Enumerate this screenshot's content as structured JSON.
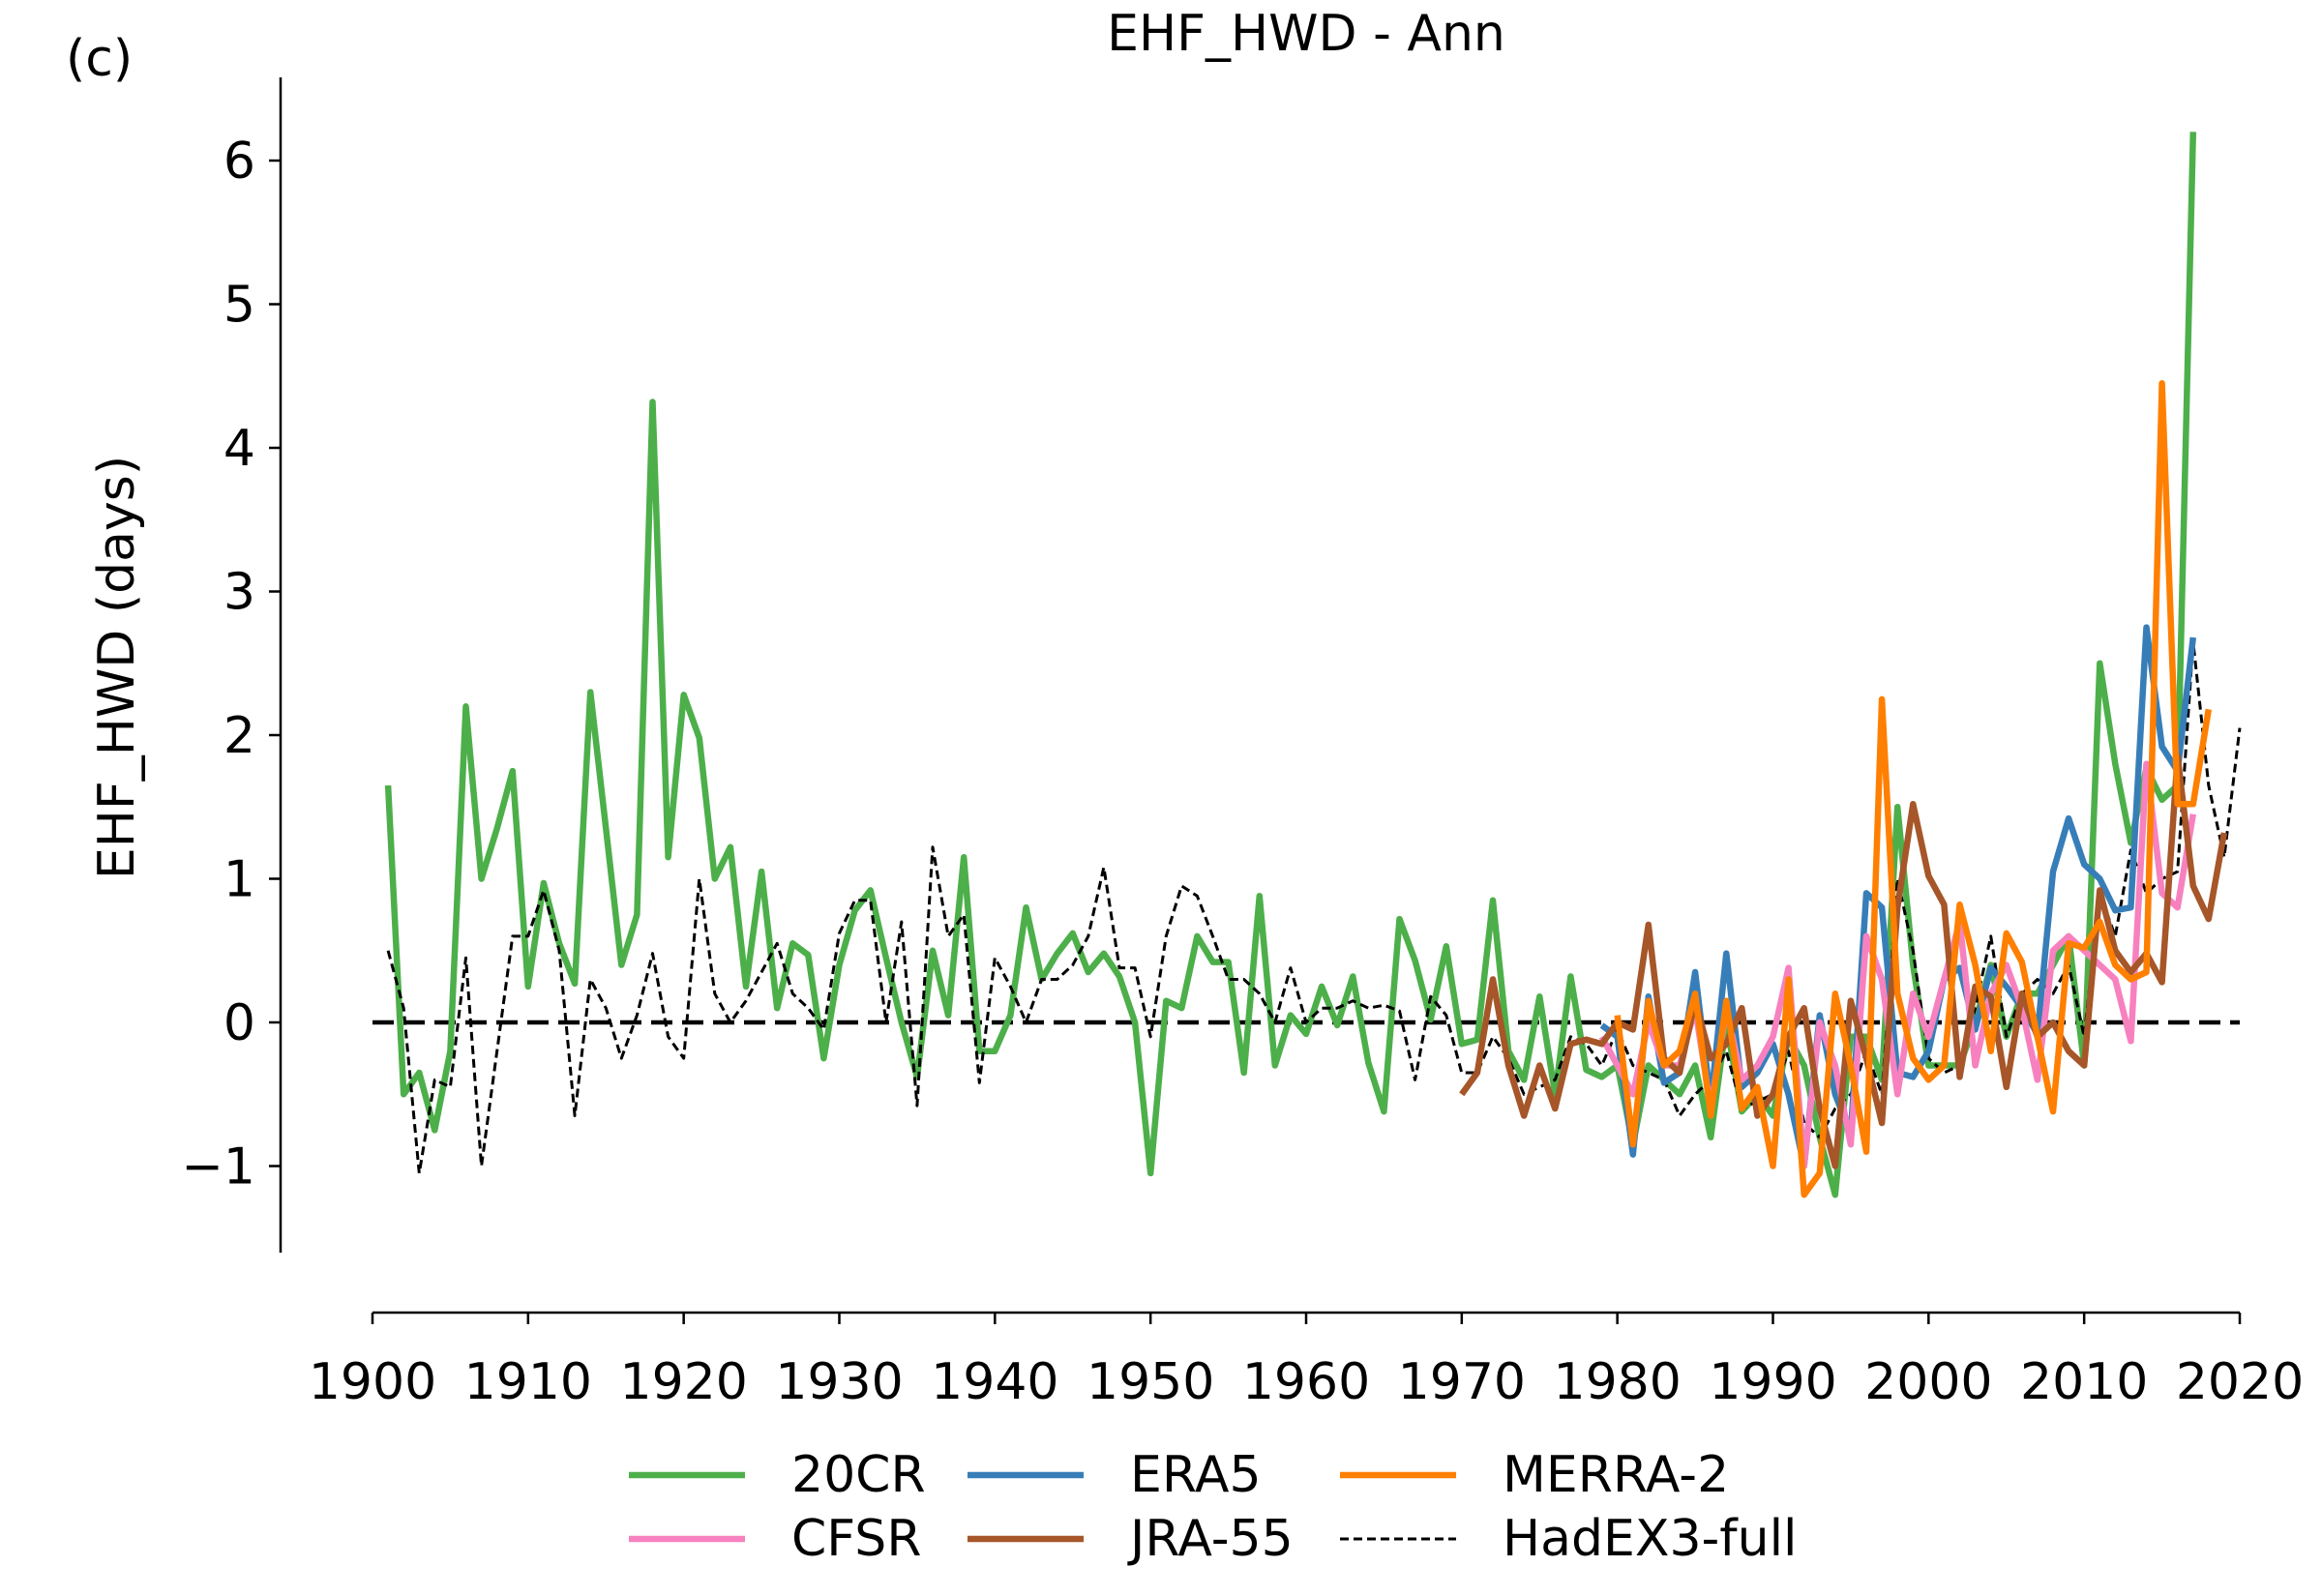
{
  "panel_label": "(c)",
  "chart_data": {
    "type": "line",
    "title": "EHF_HWD - Ann",
    "xlabel": "",
    "ylabel": "EHF_HWD (days)",
    "xlim": [
      1900,
      2020
    ],
    "ylim": [
      -1.6,
      6.5
    ],
    "xticks": [
      1900,
      1910,
      1920,
      1930,
      1940,
      1950,
      1960,
      1970,
      1980,
      1990,
      2000,
      2010,
      2020
    ],
    "yticks": [
      -1,
      0,
      1,
      2,
      3,
      4,
      5,
      6
    ],
    "ytick_labels": [
      "−1",
      "0",
      "1",
      "2",
      "3",
      "4",
      "5",
      "6"
    ],
    "grid": false,
    "legend_position": "bottom-center",
    "reference_line": {
      "y": 0,
      "style": "dashed",
      "color": "#000000"
    },
    "series": [
      {
        "name": "20CR",
        "color": "#4daf4a",
        "style": "solid",
        "x_start": 1901,
        "values": [
          1.65,
          -0.5,
          -0.35,
          -0.75,
          -0.2,
          2.2,
          1.0,
          1.35,
          1.75,
          0.25,
          0.97,
          0.55,
          0.27,
          2.3,
          1.35,
          0.4,
          0.75,
          4.32,
          1.15,
          2.28,
          1.98,
          1.0,
          1.22,
          0.25,
          1.05,
          0.1,
          0.55,
          0.47,
          -0.25,
          0.4,
          0.78,
          0.92,
          0.45,
          0.0,
          -0.38,
          0.5,
          0.05,
          1.15,
          -0.2,
          -0.2,
          0.05,
          0.8,
          0.3,
          0.48,
          0.62,
          0.35,
          0.48,
          0.32,
          0.0,
          -1.05,
          0.15,
          0.1,
          0.6,
          0.42,
          0.42,
          -0.35,
          0.88,
          -0.3,
          0.05,
          -0.08,
          0.25,
          -0.02,
          0.32,
          -0.28,
          -0.62,
          0.72,
          0.43,
          0.02,
          0.53,
          -0.15,
          -0.12,
          0.85,
          -0.2,
          -0.4,
          0.18,
          -0.5,
          0.32,
          -0.33,
          -0.38,
          -0.3,
          -0.85,
          -0.3,
          -0.4,
          -0.5,
          -0.3,
          -0.8,
          0.0,
          -0.62,
          -0.5,
          -0.65,
          -0.1,
          -0.3,
          -0.8,
          -1.2,
          -0.1,
          -0.1,
          -0.4,
          1.5,
          0.4,
          -0.3,
          -0.3,
          -0.3,
          0.0,
          0.4,
          -0.1,
          0.2,
          0.2,
          0.4,
          0.6,
          -0.3,
          2.5,
          1.8,
          1.25,
          1.77,
          1.55,
          1.65,
          6.2
        ]
      },
      {
        "name": "ERA5",
        "color": "#377eb8",
        "style": "solid",
        "x_start": 1979,
        "values": [
          -0.02,
          -0.1,
          -0.92,
          0.18,
          -0.42,
          -0.35,
          0.35,
          -0.55,
          0.48,
          -0.45,
          -0.35,
          -0.15,
          -0.5,
          -1.0,
          0.05,
          -0.5,
          -0.78,
          0.9,
          0.8,
          -0.35,
          -0.38,
          -0.2,
          0.3,
          0.38,
          -0.05,
          0.38,
          0.25,
          0.1,
          -0.08,
          1.05,
          1.42,
          1.1,
          1.0,
          0.78,
          0.8,
          2.75,
          1.92,
          1.75,
          2.68
        ]
      },
      {
        "name": "MERRA-2",
        "color": "#ff7f00",
        "style": "solid",
        "x_start": 1980,
        "values": [
          0.05,
          -0.85,
          0.15,
          -0.3,
          -0.2,
          0.2,
          -0.65,
          0.15,
          -0.6,
          -0.45,
          -1.0,
          0.3,
          -1.2,
          -1.05,
          0.2,
          -0.3,
          -0.9,
          2.25,
          0.2,
          -0.25,
          -0.4,
          -0.3,
          0.82,
          0.4,
          -0.2,
          0.62,
          0.42,
          -0.1,
          -0.62,
          0.55,
          0.52,
          0.7,
          0.4,
          0.3,
          0.35,
          4.45,
          1.52,
          1.52,
          2.18
        ]
      },
      {
        "name": "CFSR",
        "color": "#f781bf",
        "style": "solid",
        "x_start": 1979,
        "values": [
          -0.1,
          -0.3,
          -0.5,
          0.0,
          -0.3,
          -0.3,
          0.1,
          -0.6,
          0.1,
          -0.4,
          -0.3,
          -0.1,
          0.38,
          -1.0,
          0.0,
          -0.3,
          -0.85,
          0.6,
          0.3,
          -0.5,
          0.2,
          -0.1,
          0.3,
          0.7,
          -0.3,
          0.2,
          0.4,
          0.1,
          -0.4,
          0.5,
          0.6,
          0.5,
          0.4,
          0.3,
          -0.13,
          1.8,
          0.9,
          0.8,
          1.45
        ]
      },
      {
        "name": "JRA-55",
        "color": "#a65628",
        "style": "solid",
        "x_start": 1970,
        "values": [
          -0.5,
          -0.35,
          0.3,
          -0.3,
          -0.65,
          -0.3,
          -0.6,
          -0.15,
          -0.12,
          -0.15,
          0.0,
          -0.05,
          0.68,
          -0.25,
          -0.35,
          0.15,
          -0.25,
          -0.15,
          0.1,
          -0.65,
          -0.5,
          -0.1,
          0.1,
          -0.6,
          -1.0,
          0.15,
          -0.25,
          -0.7,
          0.8,
          1.52,
          1.02,
          0.82,
          -0.38,
          0.25,
          0.18,
          -0.45,
          0.2,
          -0.1,
          0.0,
          -0.2,
          -0.3,
          0.92,
          0.5,
          0.35,
          0.48,
          0.28,
          1.85,
          0.95,
          0.72,
          1.32
        ]
      },
      {
        "name": "HadEX3-full",
        "color": "#000000",
        "style": "dashed",
        "x_start": 1901,
        "values": [
          0.5,
          0.1,
          -1.05,
          -0.4,
          -0.45,
          0.45,
          -1.0,
          -0.2,
          0.6,
          0.6,
          0.92,
          0.5,
          -0.65,
          0.3,
          0.1,
          -0.25,
          0.05,
          0.48,
          -0.1,
          -0.25,
          1.0,
          0.2,
          0.0,
          0.15,
          0.35,
          0.55,
          0.2,
          0.1,
          -0.05,
          0.62,
          0.85,
          0.85,
          0.0,
          0.7,
          -0.58,
          1.22,
          0.6,
          0.75,
          -0.42,
          0.45,
          0.25,
          0.0,
          0.3,
          0.3,
          0.4,
          0.6,
          1.08,
          0.38,
          0.38,
          -0.1,
          0.6,
          0.95,
          0.88,
          0.6,
          0.3,
          0.3,
          0.2,
          0.0,
          0.38,
          0.0,
          0.1,
          0.1,
          0.15,
          0.1,
          0.12,
          0.08,
          -0.4,
          0.18,
          0.05,
          -0.35,
          -0.35,
          -0.1,
          -0.25,
          -0.5,
          -0.45,
          -0.4,
          -0.1,
          -0.15,
          -0.3,
          -0.05,
          -0.3,
          -0.35,
          -0.4,
          -0.65,
          -0.5,
          -0.4,
          -0.2,
          -0.6,
          -0.55,
          -0.5,
          -0.2,
          -0.7,
          -0.8,
          -0.6,
          -0.5,
          -0.2,
          -0.5,
          1.0,
          0.5,
          -0.25,
          -0.35,
          -0.3,
          0.1,
          0.6,
          -0.1,
          0.2,
          0.3,
          0.2,
          0.4,
          -0.1,
          0.9,
          0.6,
          1.2,
          0.9,
          1.0,
          1.05,
          2.65,
          1.65,
          1.15,
          2.05
        ]
      }
    ],
    "legend_order": [
      "20CR",
      "ERA5",
      "MERRA-2",
      "CFSR",
      "JRA-55",
      "HadEX3-full"
    ]
  }
}
